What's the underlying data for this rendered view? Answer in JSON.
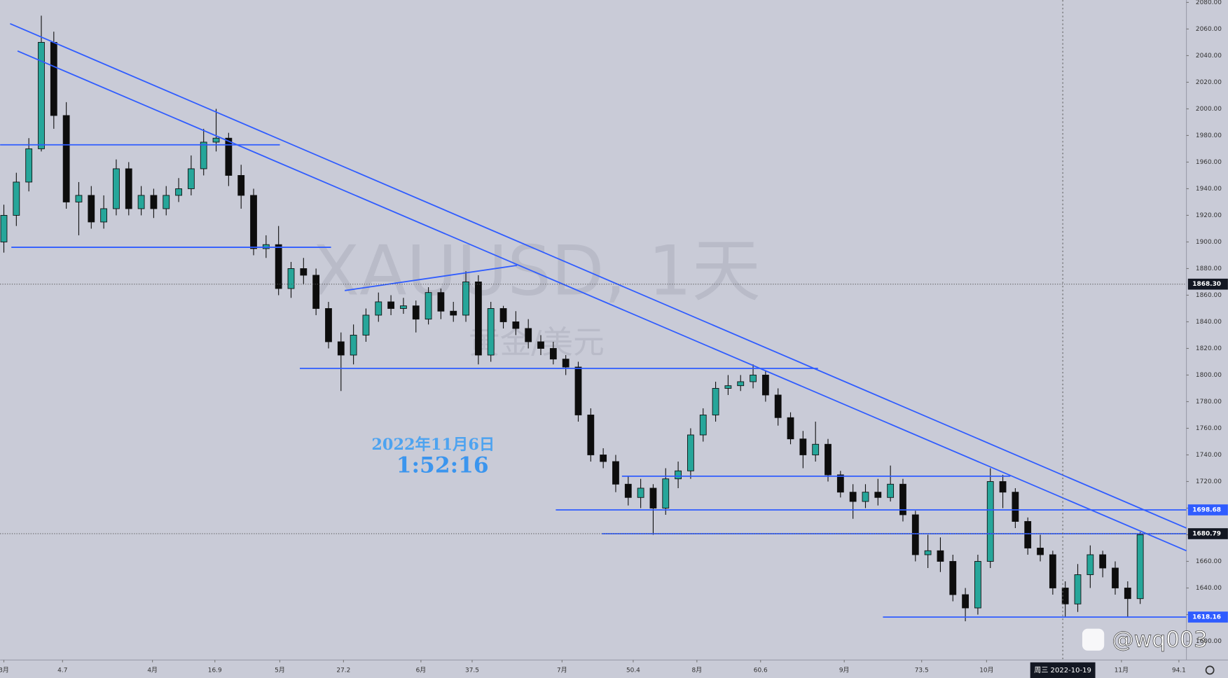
{
  "chart_data": {
    "type": "candlestick",
    "watermark": "XAUUSD, 1天",
    "watermark_sub": "黄金/美元",
    "annotation_date": "2022年11月6日",
    "annotation_time": "1:52:16",
    "credit": "@wq003",
    "up_color": "#26a69a",
    "down_color": "#0d0d0d",
    "line_color": "#2f5cff",
    "background": "#c9cbd7",
    "open": [
      1900,
      1920,
      1945,
      1970,
      2050,
      1995,
      1930,
      1935,
      1915,
      1925,
      1955,
      1925,
      1935,
      1925,
      1935,
      1940,
      1955,
      1975,
      1978,
      1950,
      1935,
      1895,
      1898,
      1865,
      1880,
      1875,
      1850,
      1825,
      1815,
      1830,
      1845,
      1855,
      1850,
      1852,
      1842,
      1862,
      1848,
      1845,
      1870,
      1815,
      1850,
      1840,
      1835,
      1825,
      1820,
      1812,
      1806,
      1770,
      1740,
      1735,
      1718,
      1708,
      1715,
      1700,
      1722,
      1728,
      1755,
      1770,
      1790,
      1792,
      1795,
      1800,
      1785,
      1768,
      1752,
      1740,
      1748,
      1725,
      1712,
      1705,
      1712,
      1708,
      1718,
      1695,
      1665,
      1668,
      1660,
      1635,
      1625,
      1660,
      1720,
      1712,
      1690,
      1670,
      1665,
      1640,
      1628,
      1650,
      1665,
      1655,
      1640,
      1632
    ],
    "high": [
      1928,
      1952,
      1978,
      2070,
      2058,
      2005,
      1945,
      1942,
      1935,
      1962,
      1960,
      1942,
      1940,
      1942,
      1948,
      1965,
      1985,
      2000,
      1982,
      1958,
      1940,
      1905,
      1912,
      1885,
      1888,
      1880,
      1855,
      1832,
      1838,
      1850,
      1862,
      1860,
      1858,
      1856,
      1866,
      1865,
      1855,
      1878,
      1875,
      1855,
      1852,
      1848,
      1842,
      1830,
      1825,
      1815,
      1810,
      1775,
      1745,
      1740,
      1724,
      1722,
      1718,
      1730,
      1735,
      1760,
      1775,
      1795,
      1800,
      1800,
      1808,
      1803,
      1790,
      1772,
      1758,
      1765,
      1752,
      1728,
      1718,
      1718,
      1722,
      1732,
      1722,
      1698,
      1680,
      1678,
      1665,
      1640,
      1665,
      1730,
      1725,
      1715,
      1693,
      1680,
      1668,
      1645,
      1658,
      1672,
      1668,
      1660,
      1645,
      1682
    ],
    "low": [
      1892,
      1912,
      1938,
      1968,
      1985,
      1925,
      1905,
      1910,
      1910,
      1920,
      1920,
      1920,
      1918,
      1920,
      1930,
      1935,
      1950,
      1968,
      1942,
      1925,
      1890,
      1888,
      1860,
      1858,
      1868,
      1845,
      1820,
      1788,
      1808,
      1825,
      1840,
      1845,
      1846,
      1832,
      1838,
      1842,
      1840,
      1840,
      1808,
      1810,
      1835,
      1830,
      1820,
      1815,
      1808,
      1800,
      1765,
      1735,
      1730,
      1712,
      1702,
      1700,
      1680,
      1695,
      1715,
      1722,
      1750,
      1765,
      1785,
      1788,
      1790,
      1780,
      1762,
      1748,
      1730,
      1735,
      1720,
      1708,
      1692,
      1700,
      1702,
      1705,
      1690,
      1660,
      1655,
      1652,
      1630,
      1615,
      1620,
      1655,
      1700,
      1685,
      1665,
      1660,
      1635,
      1618,
      1622,
      1640,
      1648,
      1635,
      1618,
      1628
    ],
    "close": [
      1920,
      1945,
      1970,
      2050,
      1995,
      1930,
      1935,
      1915,
      1925,
      1955,
      1925,
      1935,
      1925,
      1935,
      1940,
      1955,
      1975,
      1978,
      1950,
      1935,
      1895,
      1898,
      1865,
      1880,
      1875,
      1850,
      1825,
      1815,
      1830,
      1845,
      1855,
      1850,
      1852,
      1842,
      1862,
      1848,
      1845,
      1870,
      1815,
      1850,
      1840,
      1835,
      1825,
      1820,
      1812,
      1806,
      1770,
      1740,
      1735,
      1718,
      1708,
      1715,
      1700,
      1722,
      1728,
      1755,
      1770,
      1790,
      1792,
      1795,
      1800,
      1785,
      1768,
      1752,
      1740,
      1748,
      1725,
      1712,
      1705,
      1712,
      1708,
      1718,
      1695,
      1665,
      1668,
      1660,
      1635,
      1625,
      1660,
      1720,
      1712,
      1690,
      1670,
      1665,
      1640,
      1628,
      1650,
      1665,
      1655,
      1640,
      1632,
      1680
    ],
    "xlim": [
      -0.3,
      94.7
    ],
    "xticks": [
      {
        "value": 0,
        "label": "3月"
      },
      4.7,
      {
        "value": 11.9,
        "label": "4月"
      },
      16.9,
      {
        "value": 22.1,
        "label": "5月"
      },
      27.2,
      {
        "value": 33.4,
        "label": "6月"
      },
      37.5,
      {
        "value": 44.7,
        "label": "7月"
      },
      50.4,
      {
        "value": 55.5,
        "label": "8月"
      },
      60.6,
      {
        "value": 67.3,
        "label": "9月"
      },
      73.5,
      {
        "value": 78.7,
        "label": "10月"
      },
      {
        "value": 89.5,
        "label": "11月"
      },
      94.1
    ],
    "ylim": [
      1585.9,
      2081.8
    ],
    "yticks": [
      {
        "value": 1600,
        "label": "1600.00"
      },
      {
        "value": 1620,
        "label": "1620.00"
      },
      {
        "value": 1640,
        "label": "1640.00"
      },
      {
        "value": 1660,
        "label": "1660.00"
      },
      {
        "value": 1680,
        "label": "1680.00"
      },
      {
        "value": 1700,
        "label": "1700.00"
      },
      {
        "value": 1720,
        "label": "1720.00"
      },
      {
        "value": 1740,
        "label": "1740.00"
      },
      {
        "value": 1760,
        "label": "1760.00"
      },
      {
        "value": 1780,
        "label": "1780.00"
      },
      {
        "value": 1800,
        "label": "1800.00"
      },
      {
        "value": 1820,
        "label": "1820.00"
      },
      {
        "value": 1840,
        "label": "1840.00"
      },
      {
        "value": 1860,
        "label": "1860.00"
      },
      {
        "value": 1880,
        "label": "1880.00"
      },
      {
        "value": 1900,
        "label": "1900.00"
      },
      {
        "value": 1920,
        "label": "1920.00"
      },
      {
        "value": 1940,
        "label": "1940.00"
      },
      {
        "value": 1960,
        "label": "1960.00"
      },
      {
        "value": 1980,
        "label": "1980.00"
      },
      {
        "value": 2000,
        "label": "2000.00"
      },
      {
        "value": 2020,
        "label": "2020.00"
      },
      {
        "value": 2040,
        "label": "2040.00"
      },
      {
        "value": 2060,
        "label": "2060.00"
      },
      {
        "value": 2080,
        "label": "2080.00"
      }
    ],
    "trendlines": [
      {
        "x": [
          -0.3,
          22.1
        ],
        "y": [
          1973,
          1973
        ]
      },
      {
        "x": [
          0.6,
          26.2
        ],
        "y": [
          1896,
          1896
        ]
      },
      {
        "x": [
          23.7,
          65.2
        ],
        "y": [
          1805,
          1805
        ]
      },
      {
        "x": [
          49.5,
          80.6
        ],
        "y": [
          1724,
          1724
        ]
      },
      {
        "x": [
          44.2,
          94.7
        ],
        "y": [
          1698.68,
          1698.68
        ]
      },
      {
        "x": [
          47.9,
          94.7
        ],
        "y": [
          1680.79,
          1680.79
        ]
      },
      {
        "x": [
          70.4,
          94.7
        ],
        "y": [
          1618.16,
          1618.16
        ]
      },
      {
        "x": [
          0.5,
          94.7
        ],
        "y": [
          2064,
          1685
        ]
      },
      {
        "x": [
          1.1,
          94.7
        ],
        "y": [
          2043.5,
          1668
        ]
      },
      {
        "x": [
          27.3,
          41.1
        ],
        "y": [
          1863.5,
          1882.4
        ]
      }
    ],
    "price_labels": [
      {
        "value": 1868.3,
        "label": "1868.30",
        "color": "#131722",
        "dotted": true
      },
      {
        "value": 1698.68,
        "label": "1698.68",
        "color": "#2f5cff",
        "dotted": false
      },
      {
        "value": 1680.79,
        "label": "1680.79",
        "color": "#131722",
        "dotted": true
      },
      {
        "value": 1618.16,
        "label": "1618.16",
        "color": "#2f5cff",
        "dotted": false
      }
    ],
    "crosshair_x": {
      "value": 84.8,
      "label": "周三 2022-10-19"
    }
  }
}
